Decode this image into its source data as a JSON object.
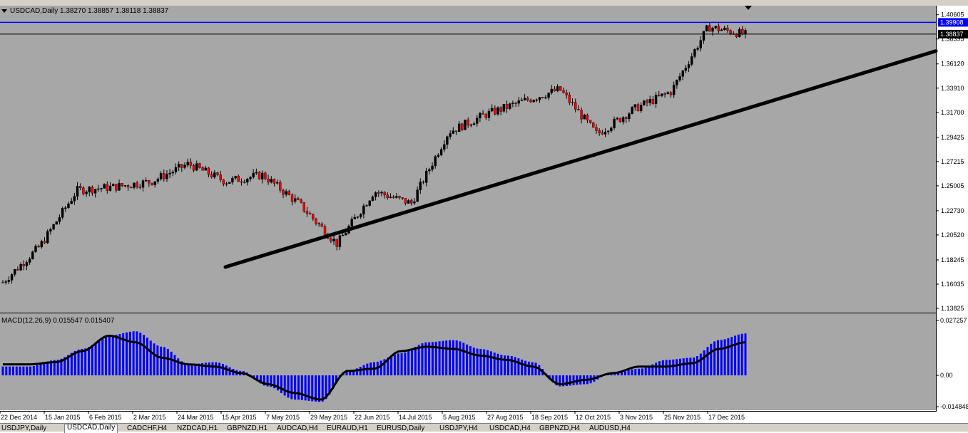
{
  "header": {
    "symbol": "USDCAD,Daily",
    "open": "1.38270",
    "high": "1.38857",
    "low": "1.38118",
    "close": "1.38837"
  },
  "indicator": {
    "label": "MACD(12,26,9) 0.015547 0.015407"
  },
  "price_axis": {
    "ticks": [
      "1.40605",
      "1.38395",
      "1.36120",
      "1.33910",
      "1.31700",
      "1.29425",
      "1.27215",
      "1.25005",
      "1.22730",
      "1.20520",
      "1.18245",
      "1.16035",
      "1.13825"
    ],
    "highlight_line_label": "1.39908",
    "current_price_label": "1.38837",
    "highlight_color": "#0000ff",
    "current_line_color": "#000000"
  },
  "macd_axis": {
    "ticks": [
      "0.027257",
      "0.00",
      "-0.014848"
    ]
  },
  "time_axis": {
    "labels": [
      "22 Dec 2014",
      "15 Jan 2015",
      "6 Feb 2015",
      "2 Mar 2015",
      "24 Mar 2015",
      "15 Apr 2015",
      "7 May 2015",
      "29 May 2015",
      "22 Jun 2015",
      "14 Jul 2015",
      "5 Aug 2015",
      "27 Aug 2015",
      "18 Sep 2015",
      "12 Oct 2015",
      "3 Nov 2015",
      "25 Nov 2015",
      "17 Dec 2015"
    ]
  },
  "tabs": [
    {
      "label": "USDJPY,Daily",
      "active": false
    },
    {
      "label": "USDCAD,Daily",
      "active": true
    },
    {
      "label": "CADCHF,H4",
      "active": false
    },
    {
      "label": "NZDCAD,H1",
      "active": false
    },
    {
      "label": "GBPNZD,H1",
      "active": false
    },
    {
      "label": "AUDCAD,H4",
      "active": false
    },
    {
      "label": "EURAUD,H1",
      "active": false
    },
    {
      "label": "EURUSD,Daily",
      "active": false
    },
    {
      "label": "USDJPY,H4",
      "active": false
    },
    {
      "label": "USDCAD,H4",
      "active": false
    },
    {
      "label": "GBPNZD,H4",
      "active": false
    },
    {
      "label": "AUDUSD,H4",
      "active": false
    }
  ],
  "colors": {
    "chart_background": "#a7a7a7",
    "bull_candle": "#000000",
    "bear_candle": "#ff0000",
    "macd_histogram": "#0000ff",
    "signal_line": "#000000",
    "trendline": "#000000"
  },
  "chart_data": [
    {
      "type": "candlestick",
      "title": "USDCAD,Daily",
      "ylim": [
        1.135,
        1.413
      ],
      "anchor_closes": [
        {
          "date": "22 Dec 2014",
          "close": 1.162
        },
        {
          "date": "15 Jan 2015",
          "close": 1.195
        },
        {
          "date": "26 Jan 2015",
          "close": 1.246
        },
        {
          "date": "6 Feb 2015",
          "close": 1.249
        },
        {
          "date": "2 Mar 2015",
          "close": 1.254
        },
        {
          "date": "10 Mar 2015",
          "close": 1.27
        },
        {
          "date": "24 Mar 2015",
          "close": 1.254
        },
        {
          "date": "1 Apr 2015",
          "close": 1.26
        },
        {
          "date": "15 Apr 2015",
          "close": 1.233
        },
        {
          "date": "7 May 2015",
          "close": 1.197
        },
        {
          "date": "29 May 2015",
          "close": 1.245
        },
        {
          "date": "22 Jun 2015",
          "close": 1.234
        },
        {
          "date": "14 Jul 2015",
          "close": 1.299
        },
        {
          "date": "5 Aug 2015",
          "close": 1.315
        },
        {
          "date": "27 Aug 2015",
          "close": 1.327
        },
        {
          "date": "18 Sep 2015",
          "close": 1.338
        },
        {
          "date": "12 Oct 2015",
          "close": 1.297
        },
        {
          "date": "3 Nov 2015",
          "close": 1.32
        },
        {
          "date": "25 Nov 2015",
          "close": 1.336
        },
        {
          "date": "17 Dec 2015",
          "close": 1.395
        },
        {
          "date": "21 Dec 2015",
          "close": 1.388
        }
      ],
      "trendline": {
        "start": {
          "date": "15 Apr 2015",
          "price": 1.176
        },
        "end": {
          "date": "beyond 17 Dec 2015",
          "price": 1.373
        }
      },
      "horizontal_lines": [
        1.39908,
        1.38837
      ]
    },
    {
      "type": "bar",
      "title": "MACD(12,26,9)",
      "ylim": [
        -0.0158,
        0.0278
      ],
      "series": [
        {
          "name": "MACD",
          "values": [
            0.004,
            0.004,
            0.007,
            0.012,
            0.018,
            0.02,
            0.013,
            0.005,
            0.006,
            0.002,
            -0.005,
            -0.011,
            -0.012,
            0.002,
            0.006,
            0.01,
            0.015,
            0.016,
            0.012,
            0.009,
            0.006,
            -0.005,
            -0.004,
            0.0015,
            0.003,
            0.007,
            0.008,
            0.016,
            0.019
          ]
        },
        {
          "name": "Signal",
          "values": [
            0.005,
            0.005,
            0.006,
            0.011,
            0.018,
            0.015,
            0.008,
            0.005,
            0.004,
            0.001,
            -0.004,
            -0.008,
            -0.011,
            0.002,
            0.003,
            0.011,
            0.013,
            0.012,
            0.009,
            0.007,
            0.004,
            -0.004,
            -0.002,
            0.001,
            0.004,
            0.004,
            0.0055,
            0.012,
            0.015
          ]
        }
      ]
    }
  ]
}
